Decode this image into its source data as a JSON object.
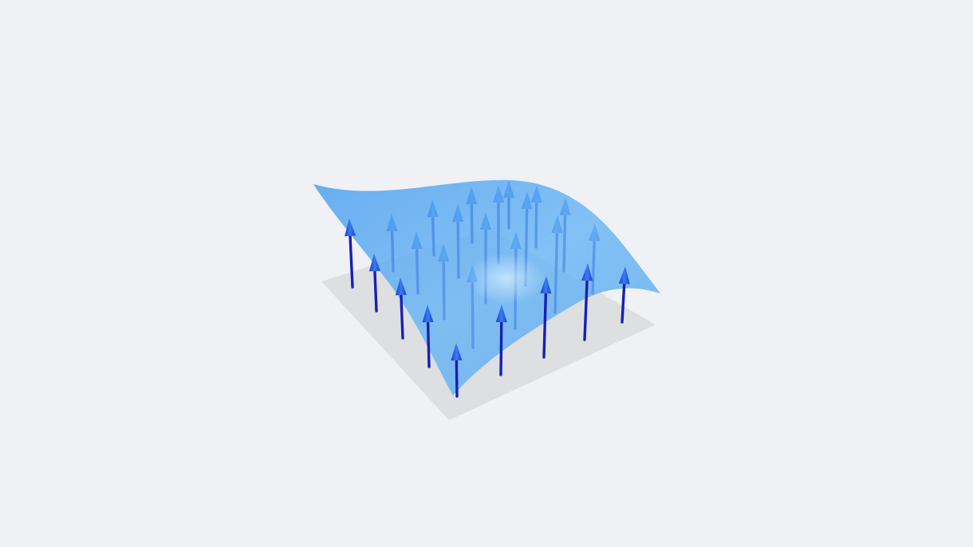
{
  "scene": {
    "background_color": "#eff1f4",
    "base_plane_color": "#dedfe1",
    "surface_color": "#5aaaf0",
    "surface_highlight_color": "#cfe8ff",
    "arrow_shaft_color": "#1620b8",
    "arrow_head_color": "#1f5fe0",
    "arrow_direction": "up",
    "arrow_count": 29
  }
}
